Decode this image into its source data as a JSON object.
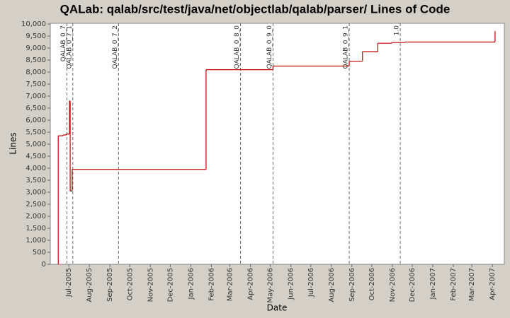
{
  "chart_data": {
    "type": "step-line",
    "title": "QALab: qalab/src/test/java/net/objectlab/qalab/parser/ Lines of Code",
    "x_label": "Date",
    "y_label": "Lines",
    "xlim": [
      "2005-06-03",
      "2007-04-19"
    ],
    "xticks": [
      {
        "value": "2005-07-01",
        "label": "Jul-2005"
      },
      {
        "value": "2005-08-01",
        "label": "Aug-2005"
      },
      {
        "value": "2005-09-01",
        "label": "Sep-2005"
      },
      {
        "value": "2005-10-01",
        "label": "Oct-2005"
      },
      {
        "value": "2005-11-01",
        "label": "Nov-2005"
      },
      {
        "value": "2005-12-01",
        "label": "Dec-2005"
      },
      {
        "value": "2006-01-01",
        "label": "Jan-2006"
      },
      {
        "value": "2006-02-01",
        "label": "Feb-2006"
      },
      {
        "value": "2006-03-01",
        "label": "Mar-2006"
      },
      {
        "value": "2006-04-01",
        "label": "Apr-2006"
      },
      {
        "value": "2006-05-01",
        "label": "May-2006"
      },
      {
        "value": "2006-06-01",
        "label": "Jun-2006"
      },
      {
        "value": "2006-07-01",
        "label": "Jul-2006"
      },
      {
        "value": "2006-08-01",
        "label": "Aug-2006"
      },
      {
        "value": "2006-09-01",
        "label": "Sep-2006"
      },
      {
        "value": "2006-10-01",
        "label": "Oct-2006"
      },
      {
        "value": "2006-11-01",
        "label": "Nov-2006"
      },
      {
        "value": "2006-12-01",
        "label": "Dec-2006"
      },
      {
        "value": "2007-01-01",
        "label": "Jan-2007"
      },
      {
        "value": "2007-02-01",
        "label": "Feb-2007"
      },
      {
        "value": "2007-03-01",
        "label": "Mar-2007"
      },
      {
        "value": "2007-04-01",
        "label": "Apr-2007"
      }
    ],
    "ylim": [
      0,
      10000
    ],
    "yticks": [
      0,
      500,
      {
        "value": 1000,
        "label": "1,000"
      },
      {
        "value": 1500,
        "label": "1,500"
      },
      {
        "value": 2000,
        "label": "2,000"
      },
      {
        "value": 2500,
        "label": "2,500"
      },
      {
        "value": 3000,
        "label": "3,000"
      },
      {
        "value": 3500,
        "label": "3,500"
      },
      {
        "value": 4000,
        "label": "4,000"
      },
      {
        "value": 4500,
        "label": "4,500"
      },
      {
        "value": 5000,
        "label": "5,000"
      },
      {
        "value": 5500,
        "label": "5,500"
      },
      {
        "value": 6000,
        "label": "6,000"
      },
      {
        "value": 6500,
        "label": "6,500"
      },
      {
        "value": 7000,
        "label": "7,000"
      },
      {
        "value": 7500,
        "label": "7,500"
      },
      {
        "value": 8000,
        "label": "8,000"
      },
      {
        "value": 8500,
        "label": "8,500"
      },
      {
        "value": 9000,
        "label": "9,000"
      },
      {
        "value": 9500,
        "label": "9,500"
      },
      {
        "value": 10000,
        "label": "10,000"
      }
    ],
    "x": [
      "2005-06-15",
      "2005-06-15",
      "2005-06-22",
      "2005-06-27",
      "2005-07-02",
      "2005-07-03",
      "2005-07-06",
      "2006-01-24",
      "2006-05-05",
      "2006-08-28",
      "2006-09-17",
      "2006-10-10",
      "2006-10-31",
      "2006-11-20",
      "2007-04-05"
    ],
    "series": [
      {
        "color": "#c00000",
        "values": [
          0,
          5350,
          5380,
          5420,
          6800,
          3050,
          3950,
          8100,
          8250,
          8450,
          8850,
          9200,
          9230,
          9250,
          9700
        ]
      }
    ],
    "markers": [
      {
        "label": "QALAB_0_7",
        "x": "2005-06-28"
      },
      {
        "label": "QALAB_0_7_1",
        "x": "2005-07-07"
      },
      {
        "label": "QALAB_0_7_2",
        "x": "2005-09-14"
      },
      {
        "label": "QALAB_0_8_0",
        "x": "2006-03-17"
      },
      {
        "label": "QALAB_0_9_0",
        "x": "2006-05-05"
      },
      {
        "label": "QALAB_0_9_1",
        "x": "2006-08-28"
      },
      {
        "label": "1.0",
        "x": "2006-11-13"
      }
    ]
  }
}
